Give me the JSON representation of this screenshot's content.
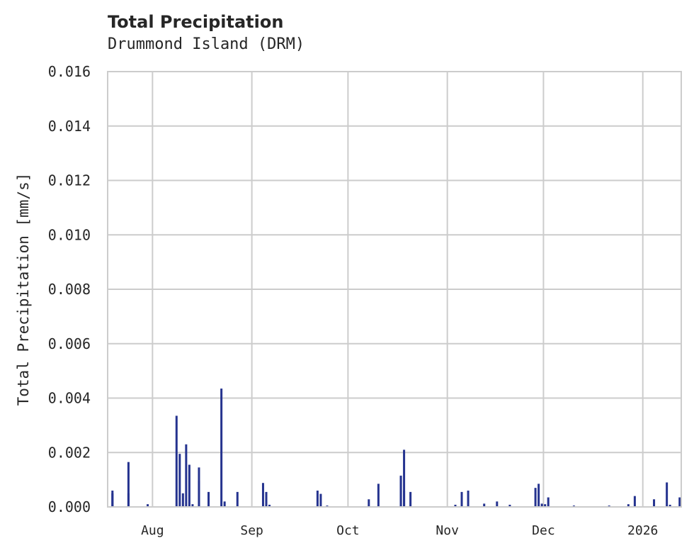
{
  "chart": {
    "title": "Total Precipitation",
    "subtitle": "Drummond Island (DRM)",
    "ylabel": "Total Precipitation [mm/s]",
    "bar_color": "#25338f",
    "grid_color": "#cccccc"
  },
  "chart_data": {
    "type": "bar",
    "title": "Total Precipitation",
    "subtitle": "Drummond Island (DRM)",
    "xlabel": "",
    "ylabel": "Total Precipitation [mm/s]",
    "ylim": [
      0,
      0.016
    ],
    "yticks": [
      "0.000",
      "0.002",
      "0.004",
      "0.006",
      "0.008",
      "0.010",
      "0.012",
      "0.014",
      "0.016"
    ],
    "xticks": [
      "Aug",
      "Sep",
      "Oct",
      "Nov",
      "Dec",
      "2026"
    ],
    "xrange": [
      "2025-07-18",
      "2026-01-13"
    ],
    "grid": true,
    "legend": null,
    "series": [
      {
        "name": "Total Precipitation",
        "x": [
          "2025-07-19",
          "2025-07-19",
          "2025-07-24",
          "2025-07-24",
          "2025-07-30",
          "2025-08-08",
          "2025-08-09",
          "2025-08-10",
          "2025-08-11",
          "2025-08-12",
          "2025-08-13",
          "2025-08-15",
          "2025-08-15",
          "2025-08-18",
          "2025-08-22",
          "2025-08-23",
          "2025-08-27",
          "2025-09-04",
          "2025-09-05",
          "2025-09-05",
          "2025-09-06",
          "2025-09-21",
          "2025-09-22",
          "2025-09-24",
          "2025-10-07",
          "2025-10-10",
          "2025-10-17",
          "2025-10-17",
          "2025-10-18",
          "2025-10-18",
          "2025-10-20",
          "2025-11-03",
          "2025-11-05",
          "2025-11-07",
          "2025-11-12",
          "2025-11-16",
          "2025-11-20",
          "2025-11-28",
          "2025-11-29",
          "2025-11-30",
          "2025-12-01",
          "2025-12-02",
          "2025-12-10",
          "2025-12-21",
          "2025-12-27",
          "2025-12-29",
          "2026-01-04",
          "2026-01-08",
          "2026-01-09",
          "2026-01-12"
        ],
        "values": [
          0.0006,
          0.0005,
          0.0005,
          0.00165,
          0.0001,
          0.00335,
          0.00195,
          0.0005,
          0.0023,
          0.00155,
          0.0001,
          0.00145,
          0.00095,
          0.00055,
          0.00435,
          0.0002,
          0.00055,
          0.00088,
          0.0003,
          0.00055,
          8e-05,
          0.0006,
          0.00048,
          5e-05,
          0.00028,
          0.00085,
          0.0011,
          0.00115,
          0.0021,
          0.0006,
          0.00055,
          8e-05,
          0.00055,
          0.0006,
          0.00012,
          0.0002,
          8e-05,
          0.0007,
          0.00085,
          0.00012,
          0.0001,
          0.00035,
          5e-05,
          5e-05,
          0.0001,
          0.0004,
          0.00028,
          0.0009,
          8e-05,
          0.00035
        ]
      }
    ]
  }
}
